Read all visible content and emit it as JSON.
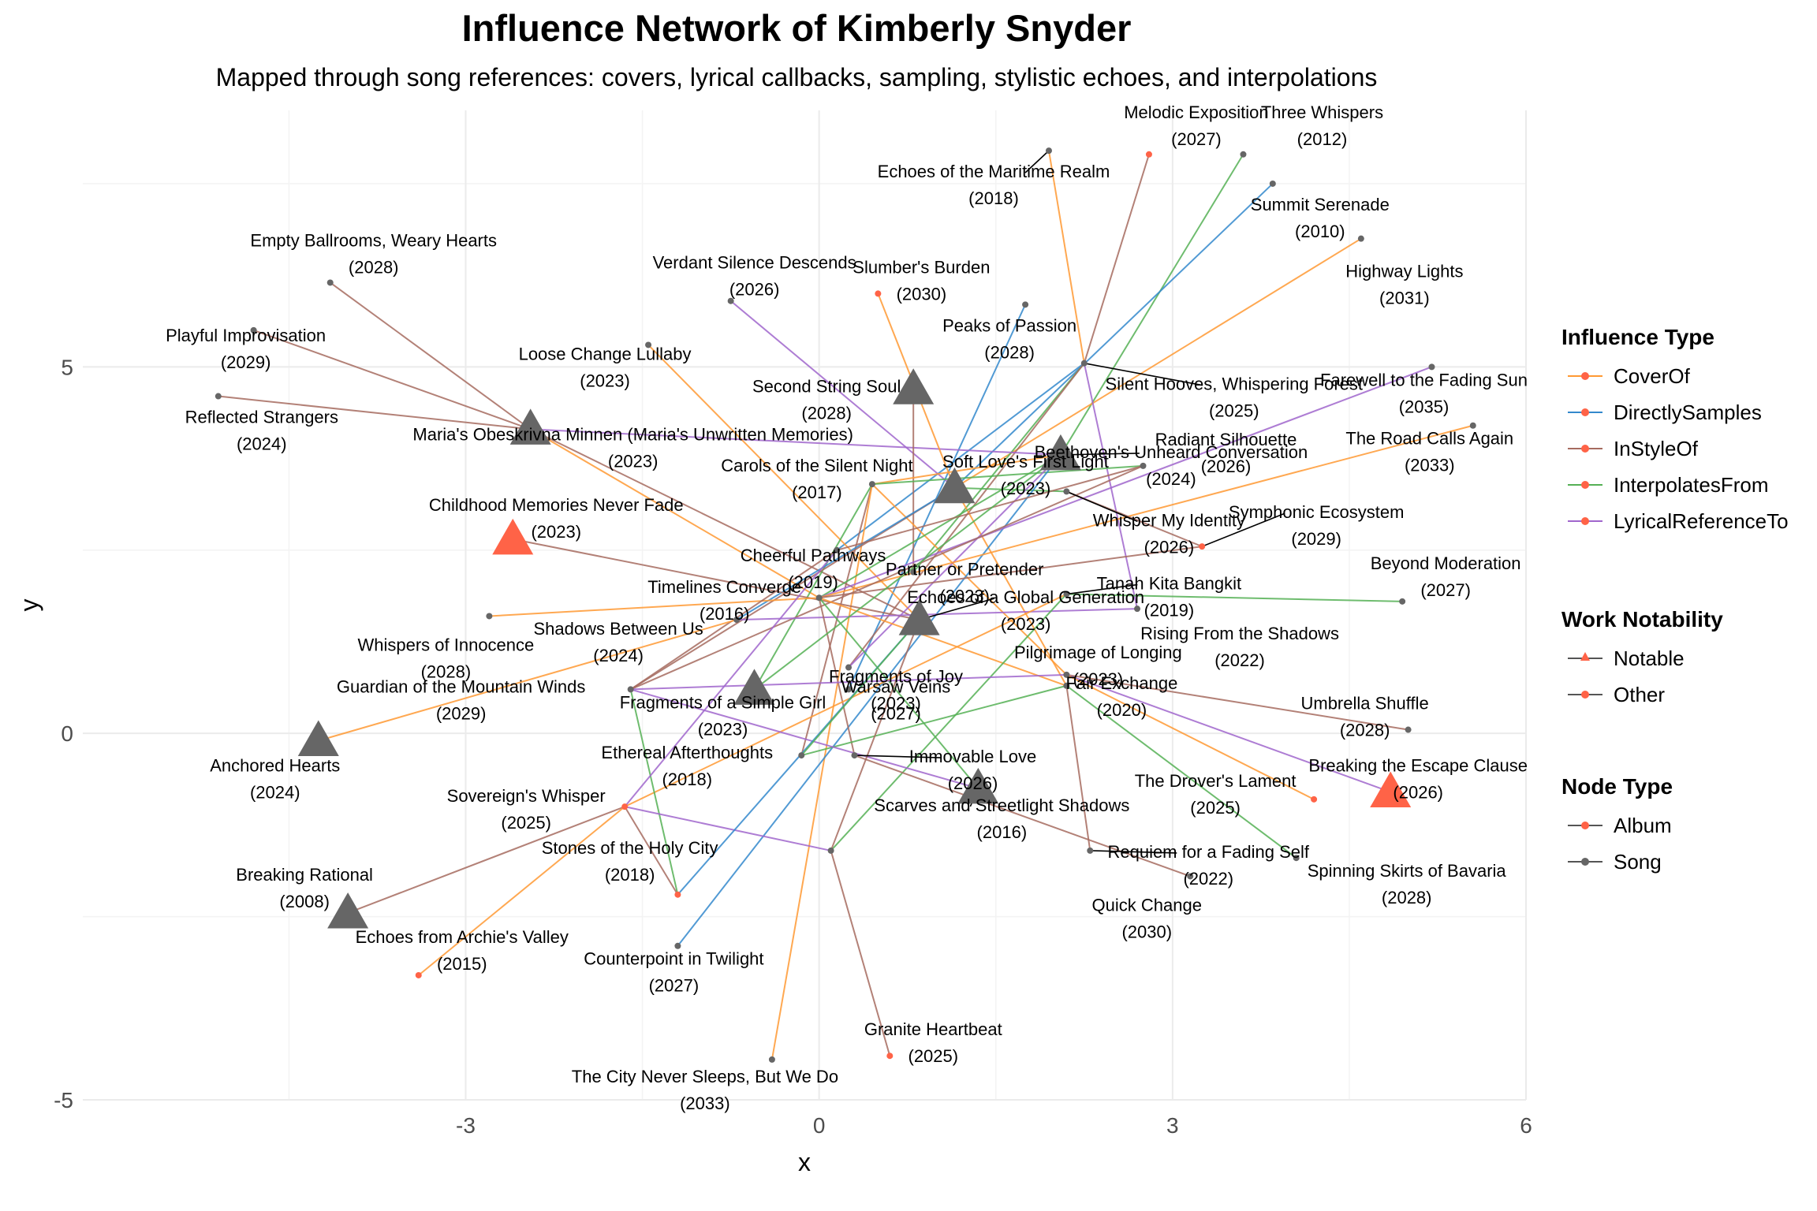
{
  "title": "Influence Network of Kimberly Snyder",
  "subtitle": "Mapped through song references: covers, lyrical callbacks, sampling, stylistic echoes, and interpolations",
  "legends": {
    "influence_type": {
      "title": "Influence Type",
      "items": [
        {
          "label": "CoverOf",
          "color": "#FF9933"
        },
        {
          "label": "DirectlySamples",
          "color": "#3388CC"
        },
        {
          "label": "InStyleOf",
          "color": "#A66B5F"
        },
        {
          "label": "InterpolatesFrom",
          "color": "#55B055"
        },
        {
          "label": "LyricalReferenceTo",
          "color": "#A066CC"
        }
      ]
    },
    "work_notability": {
      "title": "Work Notability",
      "items": [
        {
          "label": "Notable",
          "shape": "triangle-icon"
        },
        {
          "label": "Other",
          "shape": "dot-icon"
        }
      ]
    },
    "node_type": {
      "title": "Node Type",
      "items": [
        {
          "label": "Album",
          "color": "#FF6347"
        },
        {
          "label": "Song",
          "color": "#666666"
        }
      ]
    }
  },
  "chart_data": {
    "type": "network",
    "xlabel": "x",
    "ylabel": "y",
    "xlim": [
      -6.25,
      6.0
    ],
    "ylim": [
      -5.0,
      8.5
    ],
    "x_ticks": [
      -3,
      0,
      3,
      6
    ],
    "y_ticks": [
      -5,
      0,
      5
    ],
    "x_tick_labels": [
      "-3",
      "0",
      "3",
      "6"
    ],
    "y_tick_labels": [
      "-5",
      "0",
      "5"
    ],
    "grid": true,
    "nodes": [
      {
        "id": "n1",
        "title": "Melodic Exposition",
        "year": "2027",
        "x": 2.8,
        "y": 7.9,
        "type": "Album",
        "notable": false
      },
      {
        "id": "n2",
        "title": "Three Whispers",
        "year": "2012",
        "x": 3.6,
        "y": 7.9,
        "type": "Song",
        "notable": false
      },
      {
        "id": "n3",
        "title": "Echoes of the Maritime Realm",
        "year": "2018",
        "x": 1.95,
        "y": 7.95,
        "type": "Song",
        "notable": false
      },
      {
        "id": "n4",
        "title": "Summit Serenade",
        "year": "2010",
        "x": 3.85,
        "y": 7.5,
        "type": "Song",
        "notable": false
      },
      {
        "id": "n5",
        "title": "Highway Lights",
        "year": "2031",
        "x": 4.6,
        "y": 6.75,
        "type": "Song",
        "notable": false
      },
      {
        "id": "n6",
        "title": "Empty Ballrooms, Weary Hearts",
        "year": "2028",
        "x": -4.15,
        "y": 6.15,
        "type": "Song",
        "notable": false
      },
      {
        "id": "n7",
        "title": "Verdant Silence Descends",
        "year": "2026",
        "x": -0.75,
        "y": 5.9,
        "type": "Song",
        "notable": false
      },
      {
        "id": "n8",
        "title": "Slumber's Burden",
        "year": "2030",
        "x": 0.5,
        "y": 6.0,
        "type": "Album",
        "notable": false
      },
      {
        "id": "n9",
        "title": "Peaks of Passion",
        "year": "2028",
        "x": 1.75,
        "y": 5.85,
        "type": "Song",
        "notable": false
      },
      {
        "id": "n10",
        "title": "Playful Improvisation",
        "year": "2029",
        "x": -4.8,
        "y": 5.5,
        "type": "Song",
        "notable": false
      },
      {
        "id": "n11",
        "title": "Loose Change Lullaby",
        "year": "2023",
        "x": -1.45,
        "y": 5.3,
        "type": "Song",
        "notable": false
      },
      {
        "id": "n12",
        "title": "Silent Hooves, Whispering Forest",
        "year": "2025",
        "x": 2.25,
        "y": 5.05,
        "type": "Song",
        "notable": false
      },
      {
        "id": "n13",
        "title": "Farewell to the Fading Sun",
        "year": "2035",
        "x": 5.2,
        "y": 5.0,
        "type": "Song",
        "notable": false
      },
      {
        "id": "n14",
        "title": "Reflected Strangers",
        "year": "2024",
        "x": -5.1,
        "y": 4.6,
        "type": "Song",
        "notable": false
      },
      {
        "id": "n15",
        "title": "Second String Soul",
        "year": "2028",
        "x": 0.8,
        "y": 4.7,
        "type": "Song",
        "notable": true
      },
      {
        "id": "n16",
        "title": "Beethoven's Unheard Conversation",
        "year": "2024",
        "x": 2.05,
        "y": 3.8,
        "type": "Song",
        "notable": true
      },
      {
        "id": "n17",
        "title": "The Road Calls Again",
        "year": "2033",
        "x": 5.55,
        "y": 4.2,
        "type": "Song",
        "notable": false
      },
      {
        "id": "n18",
        "title": "Maria's Obeskrivna Minnen (Maria's Unwritten Memories)",
        "year": "2023",
        "x": -2.45,
        "y": 4.15,
        "type": "Song",
        "notable": true
      },
      {
        "id": "n19",
        "title": "Radiant Silhouette",
        "year": "2026",
        "x": 2.75,
        "y": 3.65,
        "type": "Song",
        "notable": false
      },
      {
        "id": "n20",
        "title": "Carols of the Silent Night",
        "year": "2017",
        "x": 0.45,
        "y": 3.4,
        "type": "Song",
        "notable": false
      },
      {
        "id": "n21",
        "title": "Soft Love's First Light",
        "year": "2023",
        "x": 1.15,
        "y": 3.35,
        "type": "Song",
        "notable": true
      },
      {
        "id": "n22",
        "title": "Whisper My Identity",
        "year": "2026",
        "x": 2.1,
        "y": 3.3,
        "type": "Song",
        "notable": false
      },
      {
        "id": "n23",
        "title": "Childhood Memories Never Fade",
        "year": "2023",
        "x": -2.6,
        "y": 2.65,
        "type": "Album",
        "notable": true
      },
      {
        "id": "n24",
        "title": "Cheerful Pathways",
        "year": "2019",
        "x": 0.15,
        "y": 2.5,
        "type": "Song",
        "notable": false
      },
      {
        "id": "n25",
        "title": "Symphonic Ecosystem",
        "year": "2029",
        "x": 3.25,
        "y": 2.55,
        "type": "Album",
        "notable": false
      },
      {
        "id": "n26",
        "title": "Partner or Pretender",
        "year": "2023",
        "x": 0.8,
        "y": 2.2,
        "type": "Song",
        "notable": false
      },
      {
        "id": "n27",
        "title": "Timelines Converge",
        "year": "2016",
        "x": 0.0,
        "y": 1.85,
        "type": "Song",
        "notable": false
      },
      {
        "id": "n28",
        "title": "Tanah Kita Bangkit",
        "year": "2019",
        "x": 2.1,
        "y": 1.9,
        "type": "Song",
        "notable": false
      },
      {
        "id": "n29",
        "title": "Beyond Moderation",
        "year": "2027",
        "x": 4.95,
        "y": 1.8,
        "type": "Song",
        "notable": false
      },
      {
        "id": "n30",
        "title": "Rising From the Shadows",
        "year": "2022",
        "x": 2.7,
        "y": 1.7,
        "type": "Song",
        "notable": false
      },
      {
        "id": "n31",
        "title": "Echoes of a Global Generation",
        "year": "2023",
        "x": 0.85,
        "y": 1.55,
        "type": "Song",
        "notable": true
      },
      {
        "id": "n32",
        "title": "Whispers of Innocence",
        "year": "2028",
        "x": -2.8,
        "y": 1.6,
        "type": "Song",
        "notable": false
      },
      {
        "id": "n33",
        "title": "Shadows Between Us",
        "year": "2024",
        "x": -0.7,
        "y": 1.55,
        "type": "Song",
        "notable": false
      },
      {
        "id": "n34",
        "title": "Fragments of Joy",
        "year": "2023",
        "x": 0.25,
        "y": 0.9,
        "type": "Song",
        "notable": false
      },
      {
        "id": "n35",
        "title": "Pilgrimage of Longing",
        "year": "2023",
        "x": 2.1,
        "y": 0.8,
        "type": "Song",
        "notable": false
      },
      {
        "id": "n36",
        "title": "Guardian of the Mountain Winds",
        "year": "2029",
        "x": -1.6,
        "y": 0.6,
        "type": "Song",
        "notable": false
      },
      {
        "id": "n37",
        "title": "Fragments of a Simple Girl",
        "year": "2023",
        "x": -0.55,
        "y": 0.6,
        "type": "Song",
        "notable": true
      },
      {
        "id": "n38",
        "title": "Warsaw Veins",
        "year": "2027",
        "x": 0.25,
        "y": 0.6,
        "type": "Song",
        "notable": false
      },
      {
        "id": "n39",
        "title": "Fair Exchange",
        "year": "2020",
        "x": 2.1,
        "y": 0.65,
        "type": "Song",
        "notable": false
      },
      {
        "id": "n40",
        "title": "Umbrella Shuffle",
        "year": "2028",
        "x": 5.0,
        "y": 0.05,
        "type": "Song",
        "notable": false
      },
      {
        "id": "n41",
        "title": "Anchored Hearts",
        "year": "2024",
        "x": -4.25,
        "y": -0.1,
        "type": "Song",
        "notable": true
      },
      {
        "id": "n42",
        "title": "Immovable Love",
        "year": "2026",
        "x": 0.3,
        "y": -0.3,
        "type": "Song",
        "notable": false
      },
      {
        "id": "n43",
        "title": "Ethereal Afterthoughts",
        "year": "2018",
        "x": -0.15,
        "y": -0.3,
        "type": "Song",
        "notable": false
      },
      {
        "id": "n44",
        "title": "Breaking the Escape Clause",
        "year": "2026",
        "x": 4.85,
        "y": -0.8,
        "type": "Album",
        "notable": true
      },
      {
        "id": "n45",
        "title": "The Drover's Lament",
        "year": "2025",
        "x": 4.2,
        "y": -0.9,
        "type": "Album",
        "notable": false
      },
      {
        "id": "n46",
        "title": "Sovereign's Whisper",
        "year": "2025",
        "x": -1.65,
        "y": -1.0,
        "type": "Album",
        "notable": false
      },
      {
        "id": "n47",
        "title": "Scarves and Streetlight Shadows",
        "year": "2016",
        "x": 1.35,
        "y": -0.75,
        "type": "Song",
        "notable": true
      },
      {
        "id": "n48",
        "title": "Requiem for a Fading Self",
        "year": "2022",
        "x": 2.3,
        "y": -1.6,
        "type": "Song",
        "notable": false
      },
      {
        "id": "n49",
        "title": "Spinning Skirts of Bavaria",
        "year": "2028",
        "x": 4.05,
        "y": -1.7,
        "type": "Song",
        "notable": false
      },
      {
        "id": "n50",
        "title": "Stones of the Holy City",
        "year": "2018",
        "x": 0.1,
        "y": -1.6,
        "type": "Song",
        "notable": false
      },
      {
        "id": "n51",
        "title": "Quick Change",
        "year": "2030",
        "x": 3.15,
        "y": -1.95,
        "type": "Song",
        "notable": false
      },
      {
        "id": "n52",
        "title": "Breaking Rational",
        "year": "2008",
        "x": -4.0,
        "y": -2.45,
        "type": "Song",
        "notable": true
      },
      {
        "id": "n53",
        "title": "Echoes from Archie's Valley",
        "year": "2015",
        "x": -3.4,
        "y": -3.3,
        "type": "Album",
        "notable": false
      },
      {
        "id": "n54",
        "title": "Counterpoint in Twilight",
        "year": "2027",
        "x": -1.2,
        "y": -2.2,
        "type": "Album",
        "notable": false
      },
      {
        "id": "n55",
        "title": "Counterpoint in Twilight",
        "year": "2027",
        "x": -1.2,
        "y": -2.9,
        "type": "Song",
        "notable": false
      },
      {
        "id": "n56",
        "title": "Granite Heartbeat",
        "year": "2025",
        "x": 0.6,
        "y": -4.4,
        "type": "Album",
        "notable": false
      },
      {
        "id": "n57",
        "title": "The City Never Sleeps, But We Do",
        "year": "2033",
        "x": -0.4,
        "y": -4.45,
        "type": "Song",
        "notable": false
      }
    ],
    "edges": [
      {
        "source": "n3",
        "target": "n12",
        "type": "CoverOf"
      },
      {
        "source": "n1",
        "target": "n12",
        "type": "InStyleOf"
      },
      {
        "source": "n2",
        "target": "n16",
        "type": "InterpolatesFrom"
      },
      {
        "source": "n4",
        "target": "n21",
        "type": "DirectlySamples"
      },
      {
        "source": "n5",
        "target": "n21",
        "type": "CoverOf"
      },
      {
        "source": "n12",
        "target": "n26",
        "type": "InterpolatesFrom"
      },
      {
        "source": "n12",
        "target": "n24",
        "type": "DirectlySamples"
      },
      {
        "source": "n9",
        "target": "n38",
        "type": "DirectlySamples"
      },
      {
        "source": "n12",
        "target": "n30",
        "type": "LyricalReferenceTo"
      },
      {
        "source": "n12",
        "target": "n34",
        "type": "InStyleOf"
      },
      {
        "source": "n6",
        "target": "n18",
        "type": "InStyleOf"
      },
      {
        "source": "n10",
        "target": "n18",
        "type": "InStyleOf"
      },
      {
        "source": "n14",
        "target": "n18",
        "type": "InStyleOf"
      },
      {
        "source": "n18",
        "target": "n16",
        "type": "LyricalReferenceTo"
      },
      {
        "source": "n18",
        "target": "n31",
        "type": "InStyleOf"
      },
      {
        "source": "n18",
        "target": "n27",
        "type": "CoverOf"
      },
      {
        "source": "n7",
        "target": "n21",
        "type": "LyricalReferenceTo"
      },
      {
        "source": "n8",
        "target": "n21",
        "type": "CoverOf"
      },
      {
        "source": "n11",
        "target": "n31",
        "type": "CoverOf"
      },
      {
        "source": "n15",
        "target": "n26",
        "type": "InStyleOf"
      },
      {
        "source": "n20",
        "target": "n16",
        "type": "CoverOf"
      },
      {
        "source": "n20",
        "target": "n19",
        "type": "InterpolatesFrom"
      },
      {
        "source": "n20",
        "target": "n35",
        "type": "CoverOf"
      },
      {
        "source": "n20",
        "target": "n43",
        "type": "InStyleOf"
      },
      {
        "source": "n20",
        "target": "n37",
        "type": "InterpolatesFrom"
      },
      {
        "source": "n20",
        "target": "n57",
        "type": "CoverOf"
      },
      {
        "source": "n21",
        "target": "n22",
        "type": "InterpolatesFrom"
      },
      {
        "source": "n21",
        "target": "n39",
        "type": "CoverOf"
      },
      {
        "source": "n21",
        "target": "n36",
        "type": "InStyleOf"
      },
      {
        "source": "n21",
        "target": "n33",
        "type": "DirectlySamples"
      },
      {
        "source": "n16",
        "target": "n27",
        "type": "InterpolatesFrom"
      },
      {
        "source": "n16",
        "target": "n55",
        "type": "DirectlySamples"
      },
      {
        "source": "n16",
        "target": "n34",
        "type": "LyricalReferenceTo"
      },
      {
        "source": "n13",
        "target": "n27",
        "type": "LyricalReferenceTo"
      },
      {
        "source": "n17",
        "target": "n27",
        "type": "CoverOf"
      },
      {
        "source": "n19",
        "target": "n24",
        "type": "InStyleOf"
      },
      {
        "source": "n19",
        "target": "n36",
        "type": "InStyleOf"
      },
      {
        "source": "n23",
        "target": "n31",
        "type": "InStyleOf"
      },
      {
        "source": "n25",
        "target": "n22",
        "type": "InStyleOf"
      },
      {
        "source": "n25",
        "target": "n27",
        "type": "InStyleOf"
      },
      {
        "source": "n29",
        "target": "n28",
        "type": "InterpolatesFrom"
      },
      {
        "source": "n30",
        "target": "n33",
        "type": "LyricalReferenceTo"
      },
      {
        "source": "n32",
        "target": "n27",
        "type": "CoverOf"
      },
      {
        "source": "n27",
        "target": "n39",
        "type": "CoverOf"
      },
      {
        "source": "n27",
        "target": "n42",
        "type": "InStyleOf"
      },
      {
        "source": "n27",
        "target": "n47",
        "type": "InterpolatesFrom"
      },
      {
        "source": "n28",
        "target": "n46",
        "type": "CoverOf"
      },
      {
        "source": "n28",
        "target": "n50",
        "type": "InterpolatesFrom"
      },
      {
        "source": "n35",
        "target": "n40",
        "type": "InStyleOf"
      },
      {
        "source": "n35",
        "target": "n44",
        "type": "LyricalReferenceTo"
      },
      {
        "source": "n35",
        "target": "n45",
        "type": "CoverOf"
      },
      {
        "source": "n35",
        "target": "n36",
        "type": "LyricalReferenceTo"
      },
      {
        "source": "n39",
        "target": "n49",
        "type": "InterpolatesFrom"
      },
      {
        "source": "n39",
        "target": "n48",
        "type": "InStyleOf"
      },
      {
        "source": "n39",
        "target": "n43",
        "type": "InterpolatesFrom"
      },
      {
        "source": "n36",
        "target": "n24",
        "type": "InStyleOf"
      },
      {
        "source": "n36",
        "target": "n54",
        "type": "InterpolatesFrom"
      },
      {
        "source": "n36",
        "target": "n47",
        "type": "LyricalReferenceTo"
      },
      {
        "source": "n41",
        "target": "n33",
        "type": "CoverOf"
      },
      {
        "source": "n46",
        "target": "n52",
        "type": "InStyleOf"
      },
      {
        "source": "n46",
        "target": "n53",
        "type": "CoverOf"
      },
      {
        "source": "n46",
        "target": "n24",
        "type": "LyricalReferenceTo"
      },
      {
        "source": "n46",
        "target": "n50",
        "type": "LyricalReferenceTo"
      },
      {
        "source": "n46",
        "target": "n54",
        "type": "InStyleOf"
      },
      {
        "source": "n54",
        "target": "n31",
        "type": "DirectlySamples"
      },
      {
        "source": "n50",
        "target": "n31",
        "type": "InStyleOf"
      },
      {
        "source": "n50",
        "target": "n56",
        "type": "InStyleOf"
      },
      {
        "source": "n43",
        "target": "n31",
        "type": "InterpolatesFrom"
      },
      {
        "source": "n42",
        "target": "n51",
        "type": "InStyleOf"
      },
      {
        "source": "n37",
        "target": "n16",
        "type": "InterpolatesFrom"
      }
    ]
  }
}
